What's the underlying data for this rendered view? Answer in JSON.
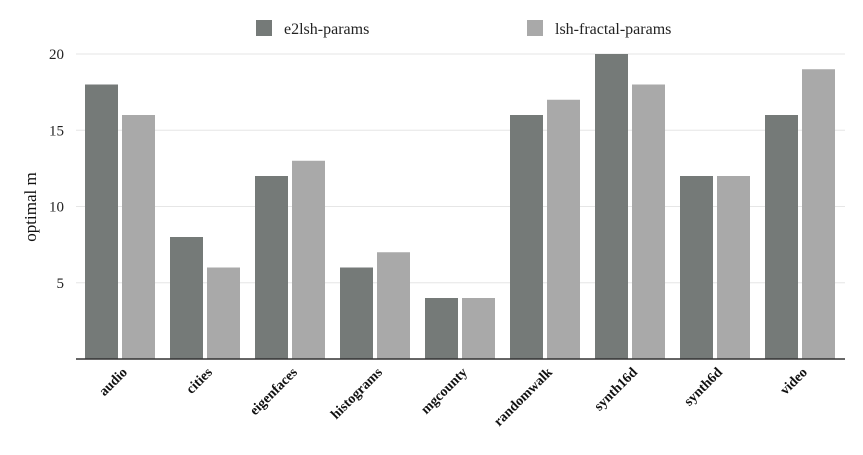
{
  "chart_data": {
    "type": "bar",
    "ylabel": "optimal m",
    "ylim": [
      0,
      20
    ],
    "yticks": [
      5,
      10,
      15,
      20
    ],
    "grid": true,
    "legend_position": "top",
    "categories": [
      "audio",
      "cities",
      "eigenfaces",
      "histograms",
      "mgcounty",
      "randomwalk",
      "synth16d",
      "synth6d",
      "video"
    ],
    "series": [
      {
        "name": "e2lsh-params",
        "color": "#757a78",
        "values": [
          18,
          8,
          12,
          6,
          4,
          16,
          20,
          12,
          16
        ]
      },
      {
        "name": "lsh-fractal-params",
        "color": "#a9a9a9",
        "values": [
          16,
          6,
          13,
          7,
          4,
          17,
          18,
          12,
          19
        ]
      }
    ]
  }
}
